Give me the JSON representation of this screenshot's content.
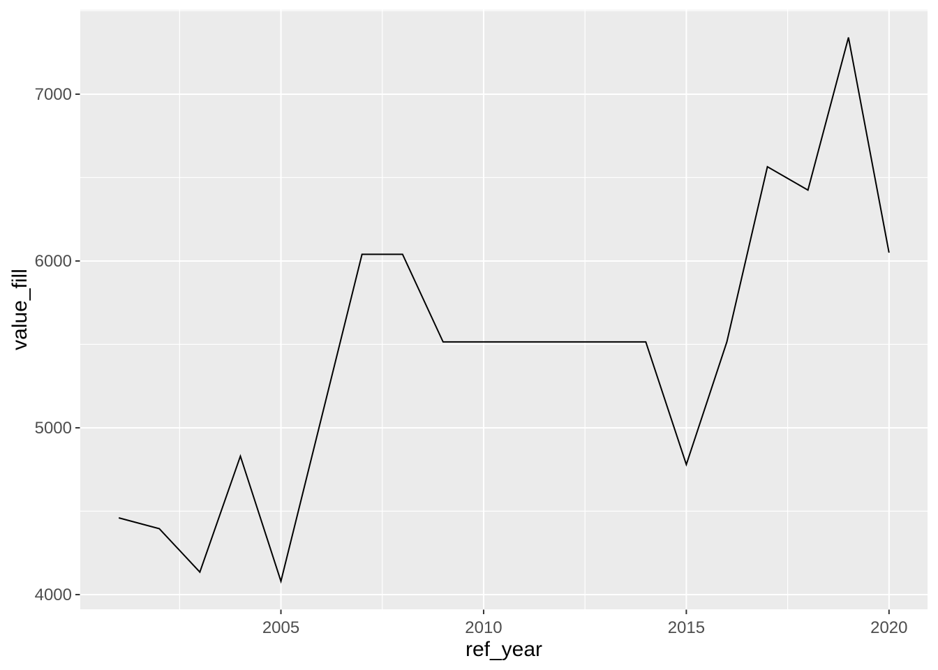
{
  "chart_data": {
    "type": "line",
    "title": "",
    "xlabel": "ref_year",
    "ylabel": "value_fill",
    "x": [
      2001,
      2002,
      2003,
      2004,
      2005,
      2006,
      2007,
      2008,
      2009,
      2010,
      2011,
      2012,
      2013,
      2014,
      2015,
      2016,
      2017,
      2018,
      2019,
      2020
    ],
    "series": [
      {
        "name": "value_fill",
        "values": [
          4460,
          4395,
          4135,
          4830,
          4080,
          5060,
          6040,
          6040,
          5515,
          5515,
          5515,
          5515,
          5515,
          5515,
          4780,
          5515,
          6565,
          6425,
          7340,
          6050
        ]
      }
    ],
    "x_ticks": [
      2005,
      2010,
      2015,
      2020
    ],
    "x_tick_labels": [
      "2005",
      "2010",
      "2015",
      "2020"
    ],
    "x_minor_breaks": [
      2002.5,
      2007.5,
      2012.5,
      2017.5
    ],
    "y_ticks": [
      4000,
      5000,
      6000,
      7000
    ],
    "y_tick_labels": [
      "4000",
      "5000",
      "6000",
      "7000"
    ],
    "y_minor_breaks": [
      4500,
      5500,
      6500,
      7500
    ],
    "xlim": [
      2000.05,
      2020.95
    ],
    "ylim": [
      3912,
      7506
    ],
    "grid": "major-and-minor",
    "legend_position": "none",
    "style": {
      "panel_bg": "#EBEBEB",
      "outer_bg": "#FFFFFF",
      "grid_color": "#FFFFFF",
      "line_color": "#000000",
      "tick_mark_color": "#333333",
      "tick_label_color": "#4D4D4D",
      "axis_title_color": "#000000"
    }
  }
}
